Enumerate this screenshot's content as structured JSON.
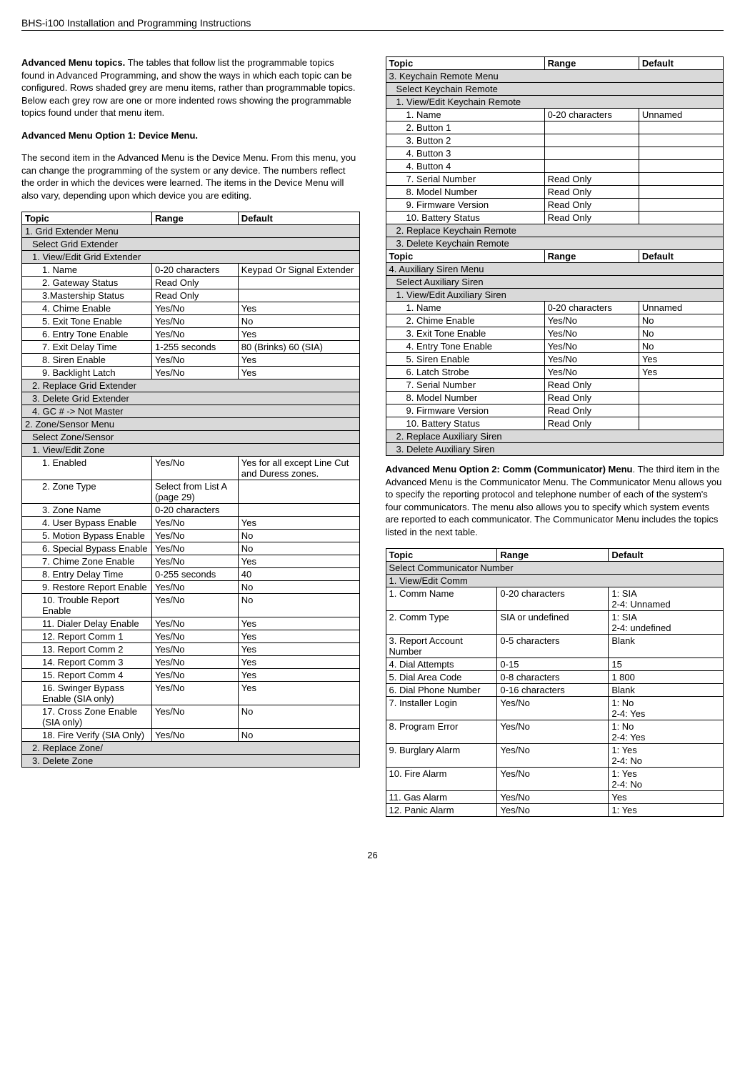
{
  "header": "BHS-i100 Installation and Programming Instructions",
  "page_number": "26",
  "intro": {
    "p1_lead": "Advanced Menu topics.",
    "p1_rest": " The tables that follow list the programmable topics found in Advanced Programming, and show the ways in which each topic can be configured. Rows shaded grey are menu items, rather than programmable topics. Below each grey row are one or more indented rows showing the programmable topics found under that menu item.",
    "opt1_head": "Advanced Menu Option 1: Device Menu.",
    "opt1_body": "The second item in the Advanced Menu is the Device Menu. From this menu, you can change the programming of the system or any device. The numbers reflect the order in which the devices were learned. The items in the Device Menu will also vary, depending upon which device you are editing."
  },
  "hdr": {
    "topic": "Topic",
    "range": "Range",
    "default": "Default"
  },
  "t1": {
    "r1": "1. Grid Extender Menu",
    "r2": "Select Grid Extender",
    "r3": "1. View/Edit Grid Extender",
    "rows": [
      [
        "1. Name",
        "0-20 characters",
        "Keypad Or Signal Extender"
      ],
      [
        "2. Gateway Status",
        "Read Only",
        ""
      ],
      [
        "3.Mastership Status",
        "Read Only",
        ""
      ],
      [
        "4. Chime Enable",
        "Yes/No",
        "Yes"
      ],
      [
        "5. Exit Tone Enable",
        "Yes/No",
        "No"
      ],
      [
        "6. Entry Tone Enable",
        "Yes/No",
        "Yes"
      ],
      [
        "7. Exit Delay Time",
        "1-255 seconds",
        "80 (Brinks) 60 (SIA)"
      ],
      [
        "8. Siren Enable",
        "Yes/No",
        "Yes"
      ],
      [
        "9. Backlight Latch",
        "Yes/No",
        "Yes"
      ]
    ],
    "r4": "2. Replace Grid Extender",
    "r5": "3. Delete Grid Extender",
    "r6": "4. GC # ->  Not Master",
    "r7": "2. Zone/Sensor Menu",
    "r8": "Select Zone/Sensor",
    "r9": "1. View/Edit Zone",
    "zrows": [
      [
        "1. Enabled",
        "Yes/No",
        "Yes for all except Line Cut and Duress zones."
      ],
      [
        "2. Zone Type",
        "Select from List A (page 29)",
        ""
      ],
      [
        "3. Zone Name",
        "0-20 characters",
        ""
      ],
      [
        "4. User Bypass Enable",
        "Yes/No",
        "Yes"
      ],
      [
        "5. Motion Bypass Enable",
        "Yes/No",
        "No"
      ],
      [
        "6. Special Bypass Enable",
        "Yes/No",
        "No"
      ],
      [
        "7. Chime Zone Enable",
        "Yes/No",
        "Yes"
      ],
      [
        "8. Entry Delay Time",
        "0-255 seconds",
        "40"
      ],
      [
        "9. Restore Report Enable",
        "Yes/No",
        "No"
      ],
      [
        "10. Trouble Report Enable",
        "Yes/No",
        "No"
      ],
      [
        "11. Dialer Delay Enable",
        "Yes/No",
        "Yes"
      ],
      [
        "12. Report Comm 1",
        "Yes/No",
        "Yes"
      ],
      [
        "13. Report Comm 2",
        "Yes/No",
        "Yes"
      ],
      [
        "14. Report Comm 3",
        "Yes/No",
        "Yes"
      ],
      [
        "15. Report Comm 4",
        "Yes/No",
        "Yes"
      ],
      [
        "16. Swinger Bypass Enable (SIA only)",
        "Yes/No",
        "Yes"
      ],
      [
        "17. Cross Zone Enable (SIA only)",
        "Yes/No",
        "No"
      ],
      [
        "18. Fire Verify (SIA Only)",
        "Yes/No",
        "No"
      ]
    ],
    "r10": "2. Replace Zone/",
    "r11": "3. Delete Zone"
  },
  "t2": {
    "r1": "3. Keychain Remote Menu",
    "r2": "Select Keychain Remote",
    "r3": "1. View/Edit Keychain Remote",
    "rows": [
      [
        "1. Name",
        "0-20 characters",
        "Unnamed"
      ],
      [
        "2. Button 1",
        "",
        ""
      ],
      [
        "3. Button 2",
        "",
        ""
      ],
      [
        "4. Button 3",
        "",
        ""
      ],
      [
        "4. Button 4",
        "",
        ""
      ],
      [
        "7. Serial Number",
        "Read Only",
        ""
      ],
      [
        "8. Model Number",
        "Read Only",
        ""
      ],
      [
        "9. Firmware Version",
        "Read Only",
        ""
      ],
      [
        "10. Battery Status",
        "Read Only",
        ""
      ]
    ],
    "r4": "2. Replace Keychain Remote",
    "r5": "3. Delete Keychain Remote"
  },
  "t3": {
    "r1": "4. Auxiliary Siren Menu",
    "r2": "Select Auxiliary Siren",
    "r3": "1. View/Edit Auxiliary Siren",
    "rows": [
      [
        "1. Name",
        "0-20 characters",
        "Unnamed"
      ],
      [
        "2. Chime Enable",
        "Yes/No",
        "No"
      ],
      [
        "3. Exit Tone Enable",
        "Yes/No",
        "No"
      ],
      [
        "4. Entry Tone Enable",
        "Yes/No",
        "No"
      ],
      [
        "5. Siren Enable",
        "Yes/No",
        "Yes"
      ],
      [
        "6. Latch Strobe",
        "Yes/No",
        "Yes"
      ],
      [
        "7. Serial Number",
        "Read Only",
        ""
      ],
      [
        "8. Model Number",
        "Read Only",
        ""
      ],
      [
        "9. Firmware Version",
        "Read Only",
        ""
      ],
      [
        "10. Battery Status",
        "Read Only",
        ""
      ]
    ],
    "r4": "2. Replace Auxiliary Siren",
    "r5": "3. Delete Auxiliary Siren"
  },
  "opt2": {
    "lead": "Advanced Menu Option 2: Comm (Communicator) Menu",
    "body": ". The third item in the Advanced Menu is the Communicator Menu. The Communicator Menu allows you to specify the reporting protocol and telephone number of each of the system's four communicators. The menu also allows you to specify which system events are reported to each communicator. The Communicator Menu includes the topics listed in the next table."
  },
  "t4": {
    "r1": "Select Communicator Number",
    "r2": "1. View/Edit Comm",
    "rows": [
      [
        "1. Comm Name",
        "0-20 characters",
        "1: SIA\n2-4: Unnamed"
      ],
      [
        "2. Comm Type",
        "SIA or undefined",
        "1: SIA\n2-4: undefined"
      ],
      [
        "3. Report Account Number",
        "0-5 characters",
        "Blank"
      ],
      [
        "4. Dial Attempts",
        "0-15",
        "15"
      ],
      [
        "5. Dial Area Code",
        "0-8 characters",
        "1 800"
      ],
      [
        "6. Dial Phone Number",
        "0-16 characters",
        "Blank"
      ],
      [
        "7. Installer Login",
        "Yes/No",
        "1: No\n2-4: Yes"
      ],
      [
        "8. Program Error",
        "Yes/No",
        "1: No\n2-4: Yes"
      ],
      [
        "9. Burglary Alarm",
        "Yes/No",
        "1: Yes\n2-4: No"
      ],
      [
        "10. Fire Alarm",
        "Yes/No",
        "1: Yes\n2-4: No"
      ],
      [
        "11. Gas Alarm",
        "Yes/No",
        "Yes"
      ],
      [
        "12. Panic Alarm",
        "Yes/No",
        "1: Yes"
      ]
    ]
  },
  "colw": {
    "left_c1": "50%",
    "left_c2": "25%",
    "left_c3": "25%",
    "r_c1": "47%",
    "r_c2": "28%",
    "r_c3": "25%",
    "r2_c1": "33%",
    "r2_c2": "33%",
    "r2_c3": "34%"
  }
}
